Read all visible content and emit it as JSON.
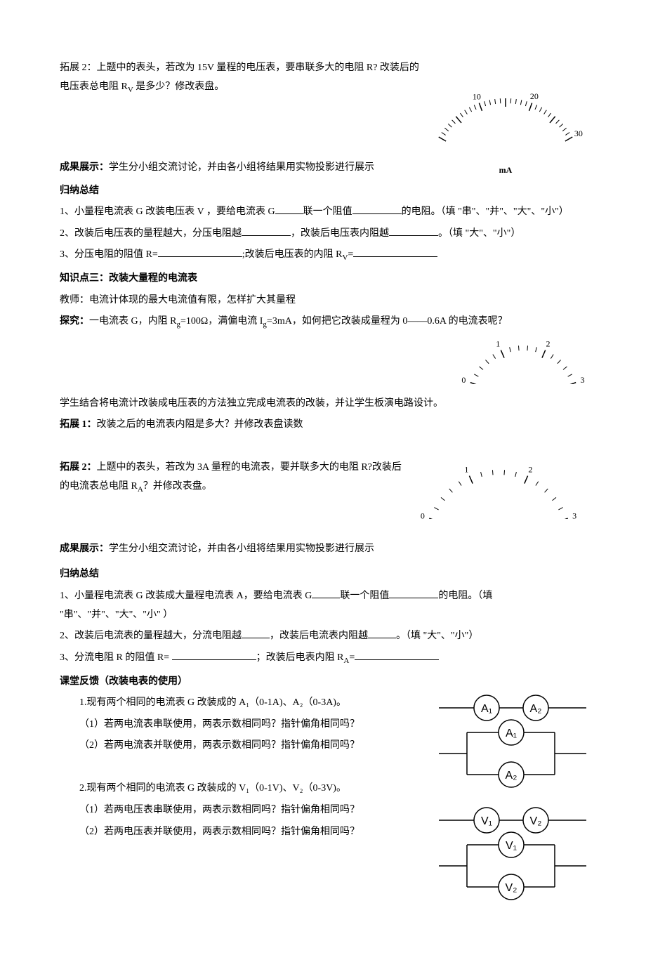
{
  "tuozhan2a": "拓展 2：上题中的表头，若改为 15V 量程的电压表，要串联多大的电阻 R? 改装后的电压表总电阻 R",
  "tuozhan2a_sub": "V",
  "tuozhan2a_tail": " 是多少？修改表盘。",
  "gauge1": {
    "ticks": [
      "10",
      "20",
      "30"
    ],
    "unit": "mA"
  },
  "chengguo1_label": "成果展示：",
  "chengguo1_text": "学生分小组交流讨论，并由各小组将结果用实物投影进行展示",
  "guina_title": "归纳总结",
  "g1_l1_a": "1、小量程电流表 G 改装电压表 V ，要给电流表 G",
  "g1_l1_b": "联一个阻值",
  "g1_l1_c": "的电阻。（填 \"串\"、\"并\"、\"大\"、\"小\"）",
  "g1_l2_a": "2、改装后电压表的量程越大，分压电阻越",
  "g1_l2_b": "，改装后电压表内阻越",
  "g1_l2_c": "。（填  \"大\"、\"小\"）",
  "g1_l3_a": "3、分压电阻的阻值 R=",
  "g1_l3_b": ";改装后电压表的内阻 R",
  "g1_l3_sub": "V",
  "g1_l3_c": "=",
  "zhishi3": "知识点三：改装大量程的电流表",
  "teacher": "教师：电流计体现的最大电流值有限，怎样扩大其量程",
  "tanjiu_label": "探究：",
  "tanjiu_text_a": "一电流表 G，内阻 R",
  "tanjiu_text_b": "=100Ω，满偏电流 I",
  "tanjiu_text_c": "=3mA，如何把它改装成量程为 0——0.6A 的电流表呢？",
  "gauge2": {
    "ticks": [
      "0",
      "1",
      "2",
      "3"
    ]
  },
  "xuesheng": "学生结合将电流计改装成电压表的方法独立完成电流表的改装，并让学生板演电路设计。",
  "tuozhan1_label": "拓展 1：",
  "tuozhan1_text": "改装之后的电流表内阻是多大？并修改表盘读数",
  "tuozhan2b_label": "拓展 2：",
  "tuozhan2b_text_a": "上题中的表头，若改为 3A 量程的电流表，要并联多大的电阻 R?改装后的电流表总电阻 R",
  "tuozhan2b_sub": "A",
  "tuozhan2b_text_b": "？并修改表盘。",
  "gauge3": {
    "ticks": [
      "0",
      "1",
      "2",
      "3"
    ]
  },
  "chengguo2_label": "成果展示：",
  "chengguo2_text": "学生分小组交流讨论，并由各小组将结果用实物投影进行展示",
  "g2_l1_a": "1、小量程电流表 G 改装成大量程电流表 A，要给电流表 G",
  "g2_l1_b": "联一个阻值",
  "g2_l1_c": "的电阻。（填 \"串\"、\"并\"、\"大\"、\"小\"  ）",
  "g2_l2_a": "2、改装后电流表的量程越大，分流电阻越",
  "g2_l2_b": "，改装后电流表内阻越",
  "g2_l2_c": "。（填  \"大\"、\"小\"）",
  "g2_l3_a": "3、分流电阻 R 的阻值  R=  ",
  "g2_l3_b": "；改装后电表内阻 R",
  "g2_l3_sub": "A",
  "g2_l3_c": "=",
  "ketang": "课堂反馈（改装电表的使用）",
  "q1": "1.现有两个相同的电流表 G 改装成的 A₁（0-1A)、A₂（0-3A)。",
  "q1_1": "（1）若两电流表串联使用，两表示数相同吗？指针偏角相同吗？",
  "q1_2": "（2）若两电流表并联使用，两表示数相同吗？指针偏角相同吗？",
  "q2": "2.现有两个相同的电流表 G 改装成的 V₁（0-1V)、V₂（0-3V)。",
  "q2_1": "（1）若两电压表串联使用，两表示数相同吗？指针偏角相同吗？",
  "q2_2": "（2）若两电压表并联使用，两表示数相同吗？指针偏角相同吗？",
  "circ": {
    "A1": "A₁",
    "A2": "A₂",
    "V1": "V₁",
    "V2": "V₂"
  }
}
